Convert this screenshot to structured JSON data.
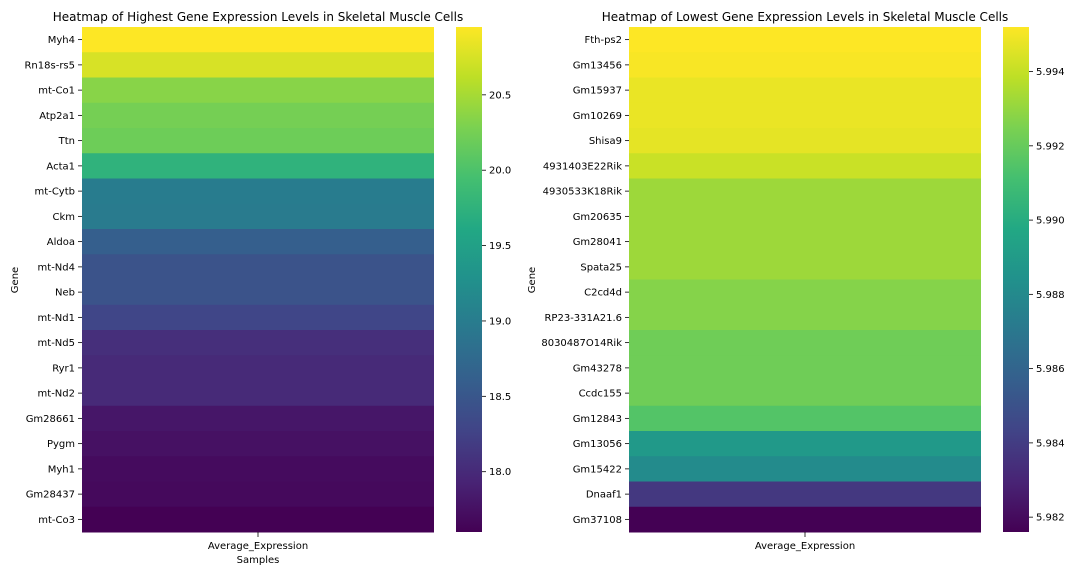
{
  "chart_data": [
    {
      "type": "heatmap",
      "title": "Heatmap of Highest Gene Expression Levels in Skeletal Muscle Cells",
      "xlabel": "Samples",
      "ylabel": "Gene",
      "columns": [
        "Average_Expression"
      ],
      "rows": [
        "Myh4",
        "Rn18s-rs5",
        "mt-Co1",
        "Atp2a1",
        "Ttn",
        "Acta1",
        "mt-Cytb",
        "Ckm",
        "Aldoa",
        "mt-Nd4",
        "Neb",
        "mt-Nd1",
        "mt-Nd5",
        "Ryr1",
        "mt-Nd2",
        "Gm28661",
        "Pygm",
        "Myh1",
        "Gm28437",
        "mt-Co3"
      ],
      "values": [
        20.95,
        20.75,
        20.35,
        20.25,
        20.2,
        19.75,
        19.0,
        18.98,
        18.6,
        18.45,
        18.45,
        18.3,
        18.05,
        18.0,
        18.0,
        17.8,
        17.75,
        17.7,
        17.68,
        17.6
      ],
      "colorbar_ticks": [
        "18.0",
        "18.5",
        "19.0",
        "19.5",
        "20.0",
        "20.5"
      ],
      "colorbar_tick_values": [
        18.0,
        18.5,
        19.0,
        19.5,
        20.0,
        20.5
      ],
      "vmin": 17.6,
      "vmax": 20.95,
      "colormap": "viridis"
    },
    {
      "type": "heatmap",
      "title": "Heatmap of Lowest Gene Expression Levels in Skeletal Muscle Cells",
      "xlabel": "",
      "ylabel": "Gene",
      "columns": [
        "Average_Expression"
      ],
      "rows": [
        "Fth-ps2",
        "Gm13456",
        "Gm15937",
        "Gm10269",
        "Shisa9",
        "4931403E22Rik",
        "4930533K18Rik",
        "Gm20635",
        "Gm28041",
        "Spata25",
        "C2cd4d",
        "RP23-331A21.6",
        "8030487O14Rik",
        "Gm43278",
        "Ccdc155",
        "Gm12843",
        "Gm13056",
        "Gm15422",
        "Dnaaf1",
        "Gm37108"
      ],
      "values": [
        5.9952,
        5.9951,
        5.9948,
        5.9948,
        5.9947,
        5.9941,
        5.9932,
        5.9932,
        5.9932,
        5.9932,
        5.9927,
        5.9927,
        5.9922,
        5.9922,
        5.9922,
        5.9915,
        5.9889,
        5.9881,
        5.9838,
        5.9816
      ],
      "colorbar_ticks": [
        "5.982",
        "5.984",
        "5.986",
        "5.988",
        "5.990",
        "5.992",
        "5.994"
      ],
      "colorbar_tick_values": [
        5.982,
        5.984,
        5.986,
        5.988,
        5.99,
        5.992,
        5.994
      ],
      "vmin": 5.9816,
      "vmax": 5.9952,
      "colormap": "viridis"
    }
  ]
}
